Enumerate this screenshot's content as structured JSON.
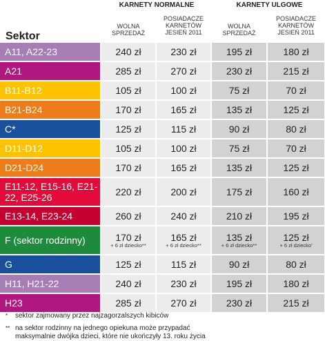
{
  "header": {
    "group_normal": "KARNETY NORMALNE",
    "group_ulgowe": "KARNETY ULGOWE",
    "col_wolna_1": "WOLNA",
    "col_wolna_2": "SPRZEDAŻ",
    "col_pos_1": "POSIADACZE",
    "col_pos_2": "KARNETÓW",
    "col_pos_3": "JESIEŃ 2011",
    "sektor": "Sektor"
  },
  "rows": [
    {
      "sector": "A11, A22-23",
      "color": "#a67db4",
      "values": [
        "240 zł",
        "230 zł",
        "195 zł",
        "180 zł"
      ]
    },
    {
      "sector": "A21",
      "color": "#b1187f",
      "values": [
        "285 zł",
        "270 zł",
        "230 zł",
        "215 zł"
      ]
    },
    {
      "sector": "B11-B12",
      "color": "#fdc300",
      "values": [
        "105 zł",
        "100 zł",
        "75 zł",
        "70 zł"
      ]
    },
    {
      "sector": "B21-B24",
      "color": "#ec7d1a",
      "values": [
        "170 zł",
        "165 zł",
        "135 zł",
        "125 zł"
      ]
    },
    {
      "sector": "C*",
      "color": "#1a4f9c",
      "values": [
        "125 zł",
        "115 zł",
        "90 zł",
        "80 zł"
      ]
    },
    {
      "sector": "D11-D12",
      "color": "#fdc300",
      "values": [
        "105 zł",
        "100 zł",
        "75 zł",
        "70 zł"
      ]
    },
    {
      "sector": "D21-D24",
      "color": "#ec7d1a",
      "values": [
        "170 zł",
        "165 zł",
        "135 zł",
        "125 zł"
      ]
    },
    {
      "sector": "E11-12, E15-16, E21-22, E25-26",
      "color": "#e30b3a",
      "values": [
        "220 zł",
        "200 zł",
        "175 zł",
        "160 zł"
      ]
    },
    {
      "sector": "E13-14, E23-24",
      "color": "#c3002f",
      "values": [
        "260 zł",
        "240 zł",
        "210 zł",
        "195 zł"
      ]
    },
    {
      "sector": "F (sektor rodzinny)",
      "color": "#1e8a3c",
      "values": [
        "170 zł",
        "165 zł",
        "135 zł",
        "125 zł"
      ],
      "notes": [
        "+ 6 zł dziecko**",
        "+ 6 zł dziecko**",
        "+ 6 zł dziecko**",
        "+ 6 zł dziecko'"
      ]
    },
    {
      "sector": "G",
      "color": "#1a4f9c",
      "values": [
        "125 zł",
        "115 zł",
        "90 zł",
        "80 zł"
      ]
    },
    {
      "sector": "H11, H21-22",
      "color": "#a67db4",
      "values": [
        "240 zł",
        "230 zł",
        "195 zł",
        "180 zł"
      ]
    },
    {
      "sector": "H23",
      "color": "#b1187f",
      "values": [
        "285 zł",
        "270 zł",
        "230 zł",
        "215 zł"
      ]
    }
  ],
  "footnotes": [
    {
      "mark": "*",
      "text": "sektor zajmowany przez najzagorzalszych kibiców"
    },
    {
      "mark": "**",
      "text": "na sektor rodzinny na jednego opiekuna może przypadać"
    },
    {
      "mark": "",
      "text": "maksymalnie dwójka dzieci, które nie ukończyły 13. roku życia"
    }
  ]
}
